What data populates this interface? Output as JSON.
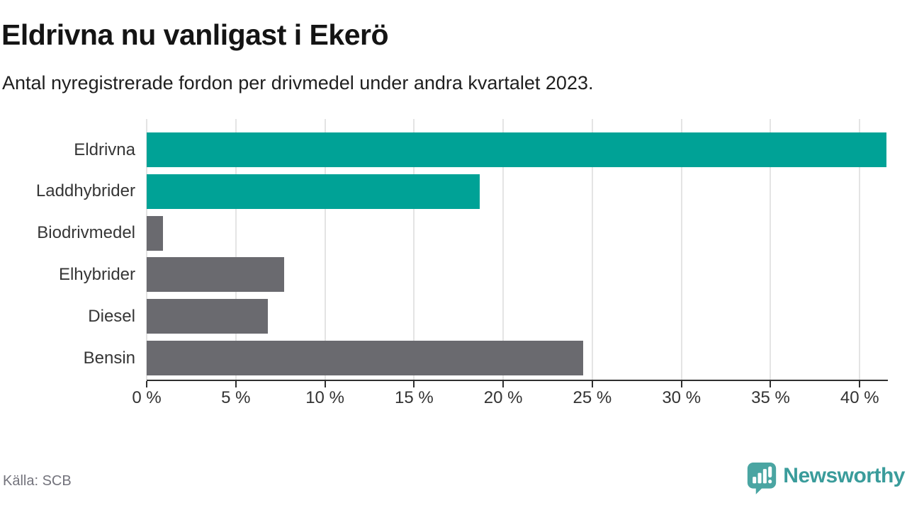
{
  "chart": {
    "title": "Eldrivna nu vanligast i Ekerö",
    "subtitle": "Antal nyregistrerade fordon per drivmedel under andra kvartalet 2023."
  },
  "chart_data": {
    "type": "bar",
    "orientation": "horizontal",
    "title": "Eldrivna nu vanligast i Ekerö",
    "subtitle": "Antal nyregistrerade fordon per drivmedel under andra kvartalet 2023.",
    "categories": [
      "Eldrivna",
      "Laddhybrider",
      "Biodrivmedel",
      "Elhybrider",
      "Diesel",
      "Bensin"
    ],
    "values": [
      41.5,
      18.7,
      0.9,
      7.7,
      6.8,
      24.5
    ],
    "unit": "%",
    "bar_colors": [
      "#00a296",
      "#00a296",
      "#6a6a6f",
      "#6a6a6f",
      "#6a6a6f",
      "#6a6a6f"
    ],
    "xlabel": "",
    "ylabel": "",
    "xlim": [
      0,
      41.5
    ],
    "xticks": [
      0,
      5,
      10,
      15,
      20,
      25,
      30,
      35,
      40
    ],
    "xtick_labels": [
      "0 %",
      "5 %",
      "10 %",
      "15 %",
      "20 %",
      "25 %",
      "30 %",
      "35 %",
      "40 %"
    ],
    "grid": "vertical-gridlines",
    "legend": "none"
  },
  "footer": {
    "source": "Källa: SCB",
    "brand": "Newsworthy"
  },
  "colors": {
    "accent_teal": "#00a296",
    "bar_gray": "#6a6a6f",
    "gridline": "#e4e4e4",
    "axis": "#2f2f2f",
    "text": "#363636",
    "source_text": "#73737c",
    "logo_teal": "#4aa5a2",
    "wordmark_teal": "#3a9c9b"
  }
}
